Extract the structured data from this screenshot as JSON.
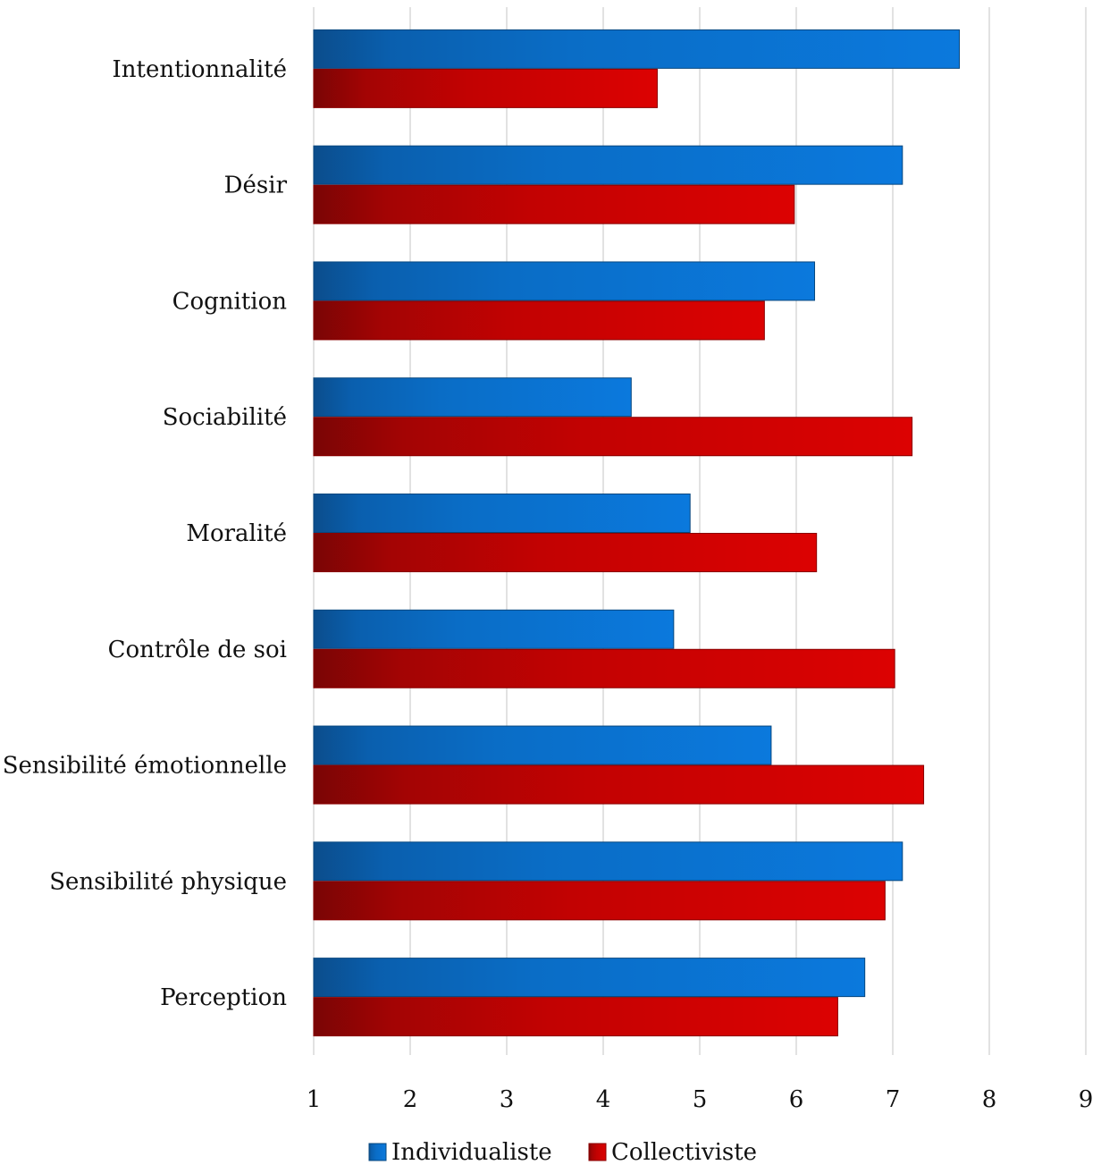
{
  "chart_data": {
    "type": "bar",
    "orientation": "horizontal",
    "categories": [
      "Intentionnalité",
      "Désir",
      "Cognition",
      "Sociabilité",
      "Moralité",
      "Contrôle de soi",
      "Sensibilité émotionnelle",
      "Sensibilité physique",
      "Perception"
    ],
    "series": [
      {
        "name": "Individualiste",
        "color": "#0a6fc9",
        "values": [
          7.69,
          7.1,
          6.19,
          4.29,
          4.9,
          4.73,
          5.74,
          7.1,
          6.71
        ]
      },
      {
        "name": "Collectiviste",
        "color": "#cc0000",
        "values": [
          4.56,
          5.98,
          5.67,
          7.2,
          6.21,
          7.02,
          7.32,
          6.92,
          6.43
        ]
      }
    ],
    "xlim": [
      1,
      9
    ],
    "xticks": [
      "1",
      "2",
      "3",
      "4",
      "5",
      "6",
      "7",
      "8",
      "9"
    ],
    "grid": true,
    "legend_position": "bottom"
  }
}
